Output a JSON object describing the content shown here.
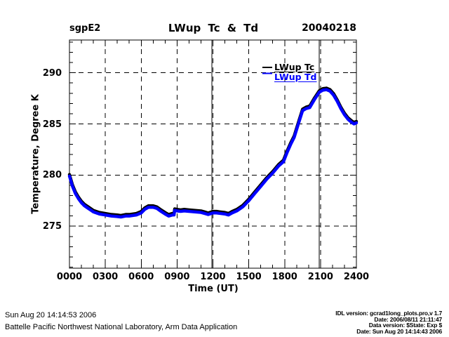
{
  "chart_data": {
    "type": "line",
    "site_label": "sgpE2",
    "title": "LWup Tc & Td",
    "date_label": "20040218",
    "xlabel": "Time (UT)",
    "ylabel": "Temperature, Degree K",
    "xlim": [
      0,
      24
    ],
    "ylim": [
      270.9,
      293.2
    ],
    "x_major_ticks": [
      0,
      3,
      6,
      9,
      12,
      15,
      18,
      21,
      24
    ],
    "x_tick_labels": [
      "0000",
      "0300",
      "0600",
      "0900",
      "1200",
      "1500",
      "1800",
      "2100",
      "2400"
    ],
    "x_minor_step": 1,
    "y_major_ticks": [
      275,
      280,
      285,
      290
    ],
    "y_tick_labels": [
      "275",
      "280",
      "285",
      "290"
    ],
    "y_minor_step": 1,
    "grid_style": "dashed",
    "solid_vlines_hours": [
      11.9,
      20.9
    ],
    "legend": {
      "position": "top-right-inside",
      "entries": [
        {
          "label": "LWup Tc",
          "color": "#000000"
        },
        {
          "label": "LWup Td",
          "color": "#0000ff"
        }
      ]
    },
    "x_hours": [
      0,
      0.25,
      0.5,
      0.75,
      1,
      1.25,
      1.5,
      2,
      2.5,
      3,
      3.5,
      4,
      4.3,
      4.7,
      5,
      5.3,
      5.6,
      6,
      6.3,
      6.6,
      7,
      7.3,
      7.6,
      8,
      8.3,
      8.6,
      8.75,
      8.8,
      9,
      9.3,
      9.6,
      10,
      10.5,
      11,
      11.3,
      11.6,
      12,
      12.3,
      12.6,
      13,
      13.3,
      13.6,
      14,
      14.5,
      15,
      15.5,
      16,
      16.5,
      17,
      17.5,
      17.9,
      18.2,
      18.5,
      18.8,
      19.2,
      19.5,
      19.8,
      20.1,
      20.5,
      20.9,
      21.2,
      21.5,
      21.8,
      22.1,
      22.4,
      22.7,
      23,
      23.3,
      23.6,
      23.8,
      24
    ],
    "series": [
      {
        "name": "LWup Tc",
        "color": "#000000",
        "values": [
          280.05,
          279.05,
          278.35,
          277.85,
          277.45,
          277.15,
          276.95,
          276.55,
          276.35,
          276.25,
          276.15,
          276.1,
          276.05,
          276.15,
          276.15,
          276.2,
          276.25,
          276.45,
          276.8,
          277,
          277,
          276.9,
          276.65,
          276.35,
          276.15,
          276.25,
          276.25,
          276.7,
          276.65,
          276.6,
          276.65,
          276.6,
          276.55,
          276.5,
          276.4,
          276.3,
          276.45,
          276.45,
          276.4,
          276.35,
          276.25,
          276.45,
          276.65,
          277.05,
          277.65,
          278.35,
          279.05,
          279.75,
          280.35,
          281.05,
          281.45,
          282.35,
          283.15,
          283.85,
          285.35,
          286.45,
          286.65,
          286.75,
          287.55,
          288.25,
          288.45,
          288.5,
          288.35,
          287.95,
          287.35,
          286.65,
          286.05,
          285.6,
          285.3,
          285.15,
          285.25
        ]
      },
      {
        "name": "LWup Td",
        "color": "#0000ff",
        "values": [
          279.9,
          278.9,
          278.2,
          277.7,
          277.3,
          277,
          276.8,
          276.4,
          276.2,
          276.1,
          276,
          275.95,
          275.9,
          276,
          276,
          276.05,
          276.1,
          276.3,
          276.65,
          276.85,
          276.85,
          276.75,
          276.5,
          276.2,
          276,
          276.1,
          276.1,
          276.55,
          276.5,
          276.45,
          276.5,
          276.45,
          276.4,
          276.35,
          276.25,
          276.15,
          276.3,
          276.3,
          276.25,
          276.2,
          276.1,
          276.3,
          276.5,
          276.9,
          277.5,
          278.2,
          278.9,
          279.6,
          280.2,
          280.9,
          281.3,
          282.2,
          283,
          283.7,
          285.2,
          286.3,
          286.5,
          286.6,
          287.4,
          288.1,
          288.3,
          288.35,
          288.2,
          287.8,
          287.2,
          286.5,
          285.9,
          285.45,
          285.15,
          285,
          285.1
        ]
      }
    ]
  },
  "footer": {
    "left_line1": "Sun Aug 20 14:14:53 2006",
    "left_line2": "Battelle Pacific Northwest National Laboratory, Arm Data Application",
    "right_lines": [
      "IDL version: gcrad1long_plots.pro,v 1.7",
      "Date: 2006/08/11 21:11:47",
      "Data version: $State: Exp $",
      "Date: Sun Aug 20 14:14:43 2006"
    ]
  },
  "colors": {
    "background": "#ffffff",
    "axis": "#000000",
    "tc": "#000000",
    "td": "#0000ff"
  }
}
